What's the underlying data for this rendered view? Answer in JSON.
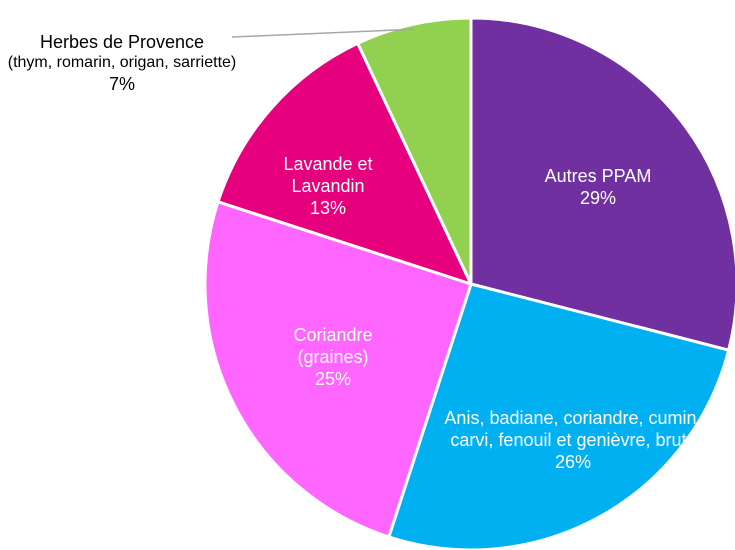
{
  "chart_data": {
    "type": "pie",
    "categories": [
      "Autres PPAM",
      "Anis, badiane, coriandre, cumin, carvi, fenouil et genièvre, bruts",
      "Coriandre (graines)",
      "Lavande et Lavandin",
      "Herbes de Provence"
    ],
    "descriptions": [
      null,
      null,
      null,
      null,
      "(thym, romarin, origan, sarriette)"
    ],
    "values": [
      29,
      26,
      25,
      13,
      7
    ],
    "value_labels": [
      "29%",
      "26%",
      "25%",
      "13%",
      "7%"
    ],
    "colors": [
      "#7030a0",
      "#00b0f0",
      "#ff66ff",
      "#e6007e",
      "#92d050"
    ]
  }
}
